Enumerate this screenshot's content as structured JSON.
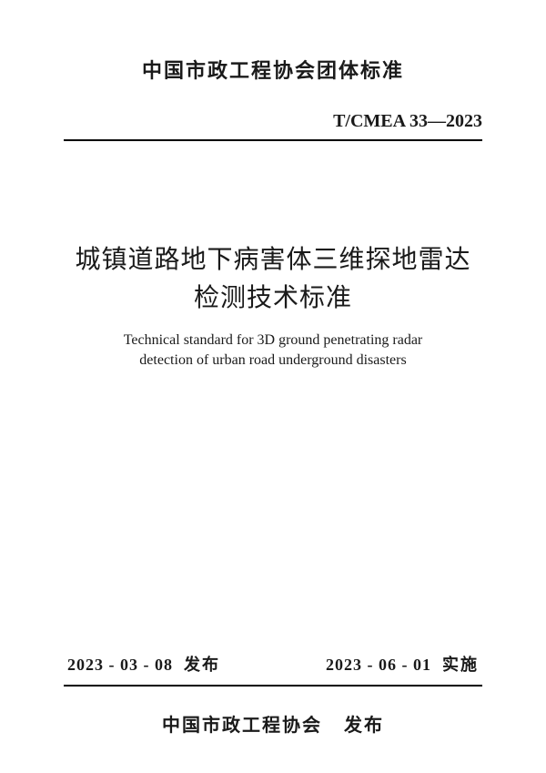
{
  "header": {
    "organization": "中国市政工程协会团体标准",
    "standard_code": "T/CMEA 33—2023"
  },
  "title": {
    "zh_line1": "城镇道路地下病害体三维探地雷达",
    "zh_line2": "检测技术标准",
    "en_line1": "Technical standard for 3D ground penetrating radar",
    "en_line2": "detection of urban road underground disasters"
  },
  "dates": {
    "issued_date": "2023 - 03 - 08",
    "issued_label": "发布",
    "effective_date": "2023 - 06 - 01",
    "effective_label": "实施"
  },
  "publisher": {
    "name": "中国市政工程协会",
    "action": "发布"
  },
  "style": {
    "background_color": "#ffffff",
    "text_color": "#1a1a1a",
    "rule_color": "#000000",
    "header_fontsize": 22,
    "code_fontsize": 20,
    "title_zh_fontsize": 28,
    "title_en_fontsize": 16,
    "dates_fontsize": 18,
    "publisher_fontsize": 20
  }
}
